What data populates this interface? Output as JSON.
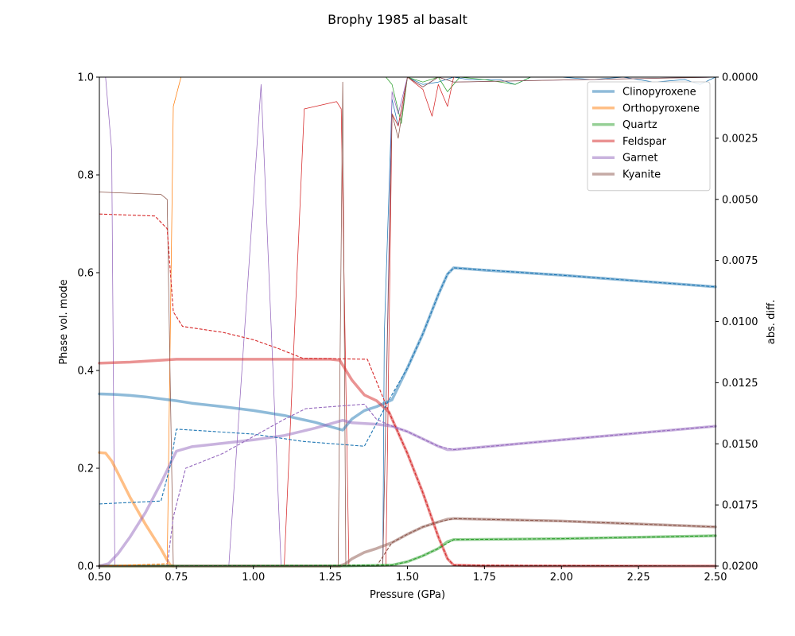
{
  "chart_data": {
    "type": "line",
    "title": "Brophy 1985 al basalt",
    "xlabel": "Pressure (GPa)",
    "ylabel": "Phase vol. mode",
    "y2label": "abs. diff.",
    "xlim": [
      0.5,
      2.5
    ],
    "ylim": [
      0.0,
      1.0
    ],
    "y2lim": [
      0.0,
      0.02
    ],
    "y2_inverted": true,
    "xticks": [
      "0.50",
      "0.75",
      "1.00",
      "1.25",
      "1.50",
      "1.75",
      "2.00",
      "2.25",
      "2.50"
    ],
    "yticks": [
      "0.0",
      "0.2",
      "0.4",
      "0.6",
      "0.8",
      "1.0"
    ],
    "y2ticks": [
      "0.0000",
      "0.0025",
      "0.0050",
      "0.0075",
      "0.0100",
      "0.0125",
      "0.0150",
      "0.0175",
      "0.0200"
    ],
    "grid": false,
    "legend_position": "top-right",
    "series": [
      {
        "name": "Clinopyroxene",
        "color": "#1f77b4",
        "x": [
          0.5,
          0.55,
          0.6,
          0.65,
          0.7,
          0.75,
          0.8,
          0.9,
          1.0,
          1.1,
          1.2,
          1.29,
          1.32,
          1.36,
          1.4,
          1.45,
          1.5,
          1.55,
          1.6,
          1.63,
          1.65,
          1.75,
          2.0,
          2.25,
          2.5
        ],
        "y": [
          0.352,
          0.351,
          0.349,
          0.346,
          0.342,
          0.338,
          0.333,
          0.326,
          0.318,
          0.308,
          0.294,
          0.278,
          0.301,
          0.318,
          0.326,
          0.34,
          0.405,
          0.475,
          0.555,
          0.597,
          0.61,
          0.605,
          0.595,
          0.583,
          0.571
        ]
      },
      {
        "name": "Orthopyroxene",
        "color": "#ff7f0e",
        "x": [
          0.5,
          0.52,
          0.54,
          0.56,
          0.6,
          0.65,
          0.7,
          0.72,
          0.73,
          0.74
        ],
        "y": [
          0.232,
          0.231,
          0.215,
          0.19,
          0.14,
          0.085,
          0.035,
          0.012,
          0.002,
          0.0
        ]
      },
      {
        "name": "Quartz",
        "color": "#2ca02c",
        "x": [
          0.5,
          1.3,
          1.45,
          1.5,
          1.55,
          1.6,
          1.63,
          1.65,
          2.0,
          2.5
        ],
        "y": [
          0.0,
          0.0,
          0.002,
          0.009,
          0.021,
          0.036,
          0.05,
          0.054,
          0.056,
          0.062
        ]
      },
      {
        "name": "Feldspar",
        "color": "#d62728",
        "x": [
          0.5,
          0.6,
          0.7,
          0.75,
          0.8,
          1.0,
          1.25,
          1.28,
          1.32,
          1.36,
          1.4,
          1.44,
          1.5,
          1.55,
          1.6,
          1.63,
          1.65,
          1.75,
          2.0,
          2.5
        ],
        "y": [
          0.415,
          0.417,
          0.421,
          0.423,
          0.423,
          0.423,
          0.423,
          0.421,
          0.38,
          0.35,
          0.338,
          0.315,
          0.23,
          0.15,
          0.06,
          0.015,
          0.002,
          0.0,
          0.0,
          0.0
        ]
      },
      {
        "name": "Garnet",
        "color": "#9467bd",
        "x": [
          0.5,
          0.53,
          0.56,
          0.6,
          0.65,
          0.7,
          0.75,
          0.8,
          0.9,
          1.0,
          1.1,
          1.2,
          1.29,
          1.32,
          1.4,
          1.45,
          1.5,
          1.55,
          1.6,
          1.63,
          1.65,
          2.0,
          2.5
        ],
        "y": [
          0.0,
          0.005,
          0.025,
          0.06,
          0.11,
          0.17,
          0.235,
          0.244,
          0.251,
          0.258,
          0.267,
          0.282,
          0.298,
          0.293,
          0.29,
          0.286,
          0.275,
          0.26,
          0.245,
          0.238,
          0.238,
          0.258,
          0.286
        ]
      },
      {
        "name": "Kyanite",
        "color": "#8c564b",
        "x": [
          0.5,
          1.28,
          1.3,
          1.32,
          1.36,
          1.4,
          1.45,
          1.5,
          1.55,
          1.6,
          1.63,
          1.65,
          2.0,
          2.5
        ],
        "y": [
          0.0,
          0.0,
          0.005,
          0.015,
          0.028,
          0.036,
          0.048,
          0.065,
          0.08,
          0.09,
          0.096,
          0.097,
          0.092,
          0.08
        ]
      }
    ],
    "dashed_series": [
      {
        "color": "#1f77b4",
        "x": [
          0.5,
          0.7,
          0.73,
          0.75,
          1.0,
          1.16,
          1.36,
          1.44,
          1.5,
          1.55,
          1.6,
          1.63,
          1.65,
          2.0,
          2.5
        ],
        "y": [
          0.127,
          0.133,
          0.205,
          0.28,
          0.27,
          0.255,
          0.245,
          0.34,
          0.405,
          0.475,
          0.555,
          0.597,
          0.61,
          0.595,
          0.571
        ]
      },
      {
        "color": "#d62728",
        "x": [
          0.5,
          0.68,
          0.72,
          0.74,
          0.77,
          0.9,
          1.0,
          1.08,
          1.16,
          1.37,
          1.44,
          1.5,
          1.55,
          1.6,
          1.63,
          1.65,
          2.5
        ],
        "y": [
          0.72,
          0.716,
          0.69,
          0.52,
          0.49,
          0.478,
          0.463,
          0.445,
          0.425,
          0.423,
          0.315,
          0.23,
          0.15,
          0.06,
          0.015,
          0.002,
          0.0
        ]
      },
      {
        "color": "#9467bd",
        "x": [
          0.5,
          0.72,
          0.74,
          0.78,
          0.9,
          1.0,
          1.1,
          1.17,
          1.36,
          1.4,
          1.45,
          1.5,
          1.55,
          1.6,
          1.65,
          2.0,
          2.5
        ],
        "y": [
          0.0,
          0.0,
          0.1,
          0.2,
          0.23,
          0.265,
          0.3,
          0.322,
          0.331,
          0.3,
          0.286,
          0.275,
          0.26,
          0.245,
          0.238,
          0.258,
          0.286
        ]
      },
      {
        "color": "#8c564b",
        "x": [
          0.5,
          1.4,
          1.45,
          1.5,
          1.55,
          1.6,
          1.65,
          2.0,
          2.5
        ],
        "y": [
          0.0,
          0.0,
          0.048,
          0.065,
          0.08,
          0.09,
          0.097,
          0.092,
          0.08
        ]
      },
      {
        "color": "#2ca02c",
        "x": [
          0.5,
          1.45,
          1.5,
          1.55,
          1.6,
          1.65,
          2.0,
          2.5
        ],
        "y": [
          0.0,
          0.002,
          0.009,
          0.021,
          0.036,
          0.054,
          0.056,
          0.062
        ]
      },
      {
        "color": "#ff7f0e",
        "x": [
          0.5,
          0.7,
          0.72
        ],
        "y": [
          0.0,
          0.004,
          0.005
        ]
      }
    ],
    "diff_series": [
      {
        "color": "#1f77b4",
        "x": [
          1.42,
          1.425,
          1.45,
          1.47,
          1.5,
          1.55,
          1.6,
          1.65,
          1.7,
          1.8,
          1.85,
          1.9,
          2.0,
          2.1,
          2.2,
          2.3,
          2.4,
          2.45,
          2.5
        ],
        "y": [
          0.02,
          0.0105,
          0.0009,
          0.002,
          0.0,
          0.0003,
          0.0002,
          0.0,
          0.0001,
          0.0001,
          0.0003,
          0.0,
          0.0,
          0.0001,
          0.0,
          0.0002,
          0.0001,
          0.0003,
          0.0
        ]
      },
      {
        "color": "#ff7f0e",
        "x": [
          0.5,
          0.72,
          0.74,
          0.765
        ],
        "y": [
          0.02,
          0.02,
          0.0012,
          0.0
        ]
      },
      {
        "color": "#2ca02c",
        "x": [
          1.43,
          1.45,
          1.48,
          1.5,
          1.55,
          1.6,
          1.63,
          1.67,
          1.75,
          1.85,
          1.9,
          2.5
        ],
        "y": [
          0.0,
          0.0003,
          0.0019,
          0.0,
          0.0002,
          0.0,
          0.0006,
          0.0,
          0.0001,
          0.0003,
          0.0,
          0.0
        ]
      },
      {
        "color": "#d62728",
        "x": [
          1.1,
          1.165,
          1.27,
          1.285,
          1.31,
          1.43,
          1.45,
          1.47,
          1.5,
          1.55,
          1.58,
          1.6,
          1.63,
          1.65,
          2.5
        ],
        "y": [
          0.02,
          0.0013,
          0.001,
          0.0013,
          0.02,
          0.02,
          0.0015,
          0.002,
          0.0,
          0.0005,
          0.0016,
          0.0003,
          0.0012,
          0.0,
          0.0
        ]
      },
      {
        "color": "#9467bd",
        "x": [
          0.52,
          0.54,
          0.55,
          0.92,
          1.025,
          1.09,
          1.42,
          1.45,
          1.47,
          1.5,
          1.55,
          1.6,
          1.65,
          2.5
        ],
        "y": [
          0.0,
          0.003,
          0.02,
          0.02,
          0.0003,
          0.02,
          0.02,
          0.0006,
          0.0015,
          0.0,
          0.0004,
          0.0,
          0.0002,
          0.0
        ]
      },
      {
        "color": "#8c564b",
        "x": [
          0.5,
          0.7,
          0.72,
          0.74,
          1.275,
          1.29,
          1.3,
          1.42,
          1.45,
          1.47,
          1.5,
          1.55,
          1.6,
          1.65,
          2.5
        ],
        "y": [
          0.0047,
          0.0048,
          0.005,
          0.02,
          0.02,
          0.0002,
          0.02,
          0.02,
          0.0015,
          0.0025,
          0.0,
          0.0004,
          0.0,
          0.0002,
          0.0
        ]
      }
    ]
  }
}
